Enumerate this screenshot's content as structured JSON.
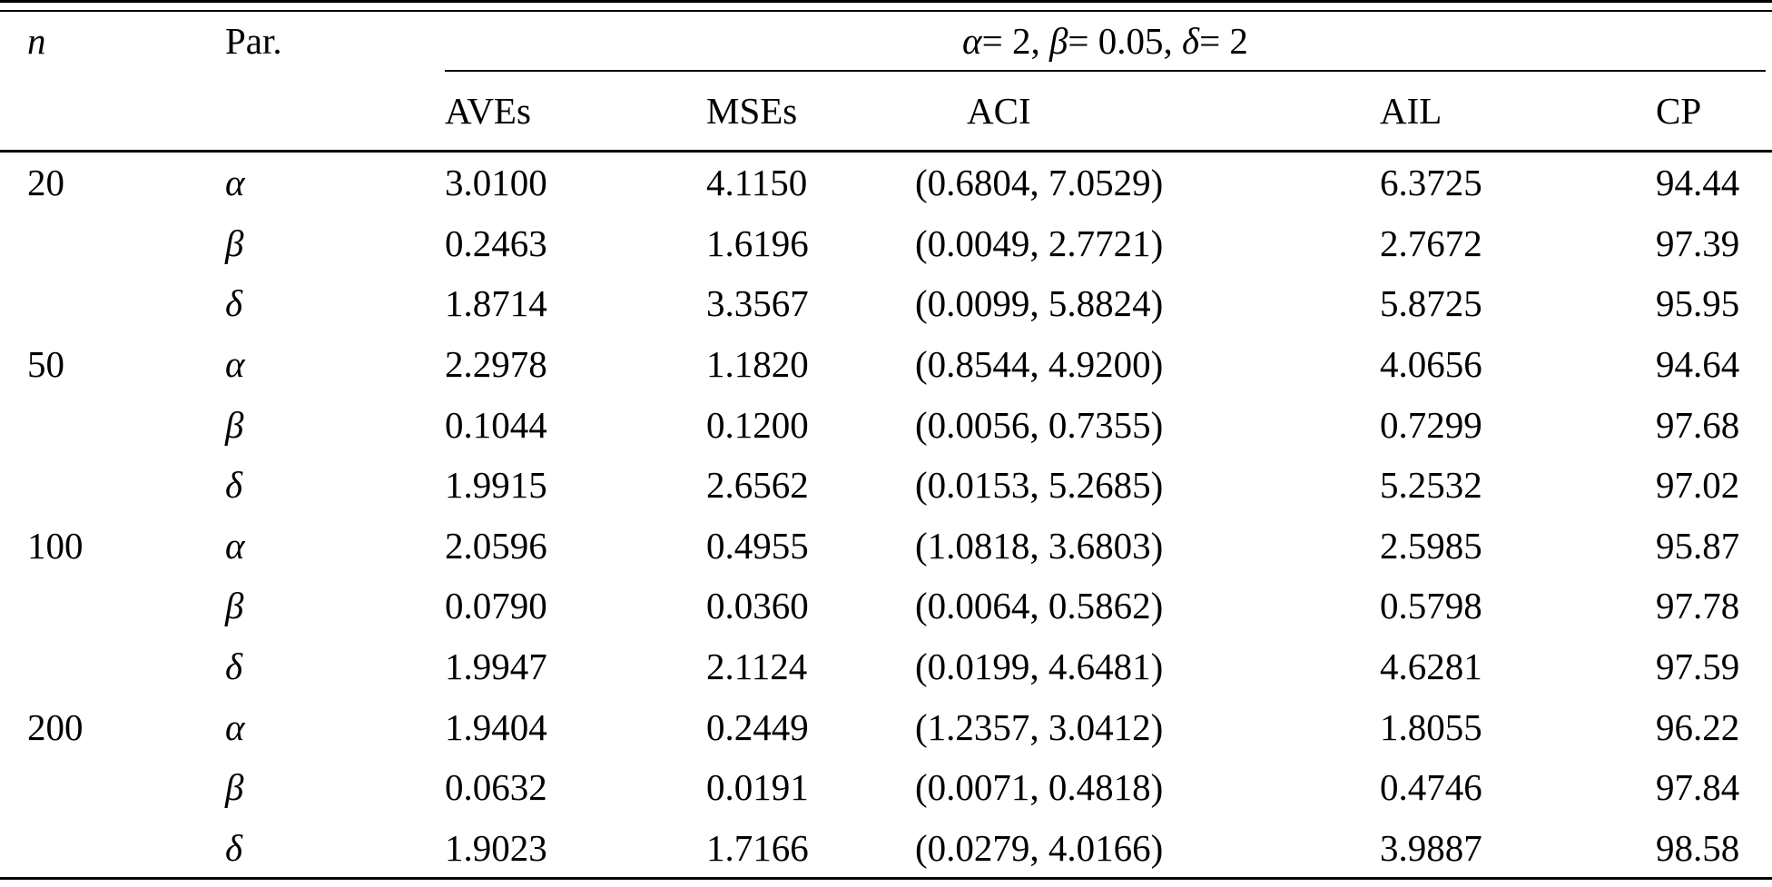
{
  "table": {
    "group_header_parts": [
      {
        "text": "α",
        "italic": true
      },
      {
        "text": "= 2, ",
        "italic": false
      },
      {
        "text": "β",
        "italic": true
      },
      {
        "text": "= 0.05, ",
        "italic": false
      },
      {
        "text": "δ",
        "italic": true
      },
      {
        "text": "= 2",
        "italic": false
      }
    ],
    "headers": {
      "n": "n",
      "par": "Par.",
      "aves": "AVEs",
      "mses": "MSEs",
      "aci": "ACI",
      "ail": "AIL",
      "cp": "CP"
    },
    "rows": [
      {
        "n": "20",
        "par": "α",
        "aves": "3.0100",
        "mses": "4.1150",
        "aci": "(0.6804, 7.0529)",
        "ail": "6.3725",
        "cp": "94.44"
      },
      {
        "n": "",
        "par": "β",
        "aves": "0.2463",
        "mses": "1.6196",
        "aci": "(0.0049, 2.7721)",
        "ail": "2.7672",
        "cp": "97.39"
      },
      {
        "n": "",
        "par": "δ",
        "aves": "1.8714",
        "mses": "3.3567",
        "aci": "(0.0099, 5.8824)",
        "ail": "5.8725",
        "cp": "95.95"
      },
      {
        "n": "50",
        "par": "α",
        "aves": "2.2978",
        "mses": "1.1820",
        "aci": "(0.8544, 4.9200)",
        "ail": "4.0656",
        "cp": "94.64"
      },
      {
        "n": "",
        "par": "β",
        "aves": "0.1044",
        "mses": "0.1200",
        "aci": "(0.0056, 0.7355)",
        "ail": "0.7299",
        "cp": "97.68"
      },
      {
        "n": "",
        "par": "δ",
        "aves": "1.9915",
        "mses": "2.6562",
        "aci": "(0.0153, 5.2685)",
        "ail": "5.2532",
        "cp": "97.02"
      },
      {
        "n": "100",
        "par": "α",
        "aves": "2.0596",
        "mses": "0.4955",
        "aci": "(1.0818, 3.6803)",
        "ail": "2.5985",
        "cp": "95.87"
      },
      {
        "n": "",
        "par": "β",
        "aves": "0.0790",
        "mses": "0.0360",
        "aci": "(0.0064, 0.5862)",
        "ail": "0.5798",
        "cp": "97.78"
      },
      {
        "n": "",
        "par": "δ",
        "aves": "1.9947",
        "mses": "2.1124",
        "aci": "(0.0199, 4.6481)",
        "ail": "4.6281",
        "cp": "97.59"
      },
      {
        "n": "200",
        "par": "α",
        "aves": "1.9404",
        "mses": "0.2449",
        "aci": "(1.2357, 3.0412)",
        "ail": "1.8055",
        "cp": "96.22"
      },
      {
        "n": "",
        "par": "β",
        "aves": "0.0632",
        "mses": "0.0191",
        "aci": "(0.0071, 0.4818)",
        "ail": "0.4746",
        "cp": "97.84"
      },
      {
        "n": "",
        "par": "δ",
        "aves": "1.9023",
        "mses": "1.7166",
        "aci": "(0.0279, 4.0166)",
        "ail": "3.9887",
        "cp": "98.58"
      }
    ],
    "colors": {
      "text": "#000000",
      "rule": "#000000",
      "background": "#ffffff"
    }
  }
}
